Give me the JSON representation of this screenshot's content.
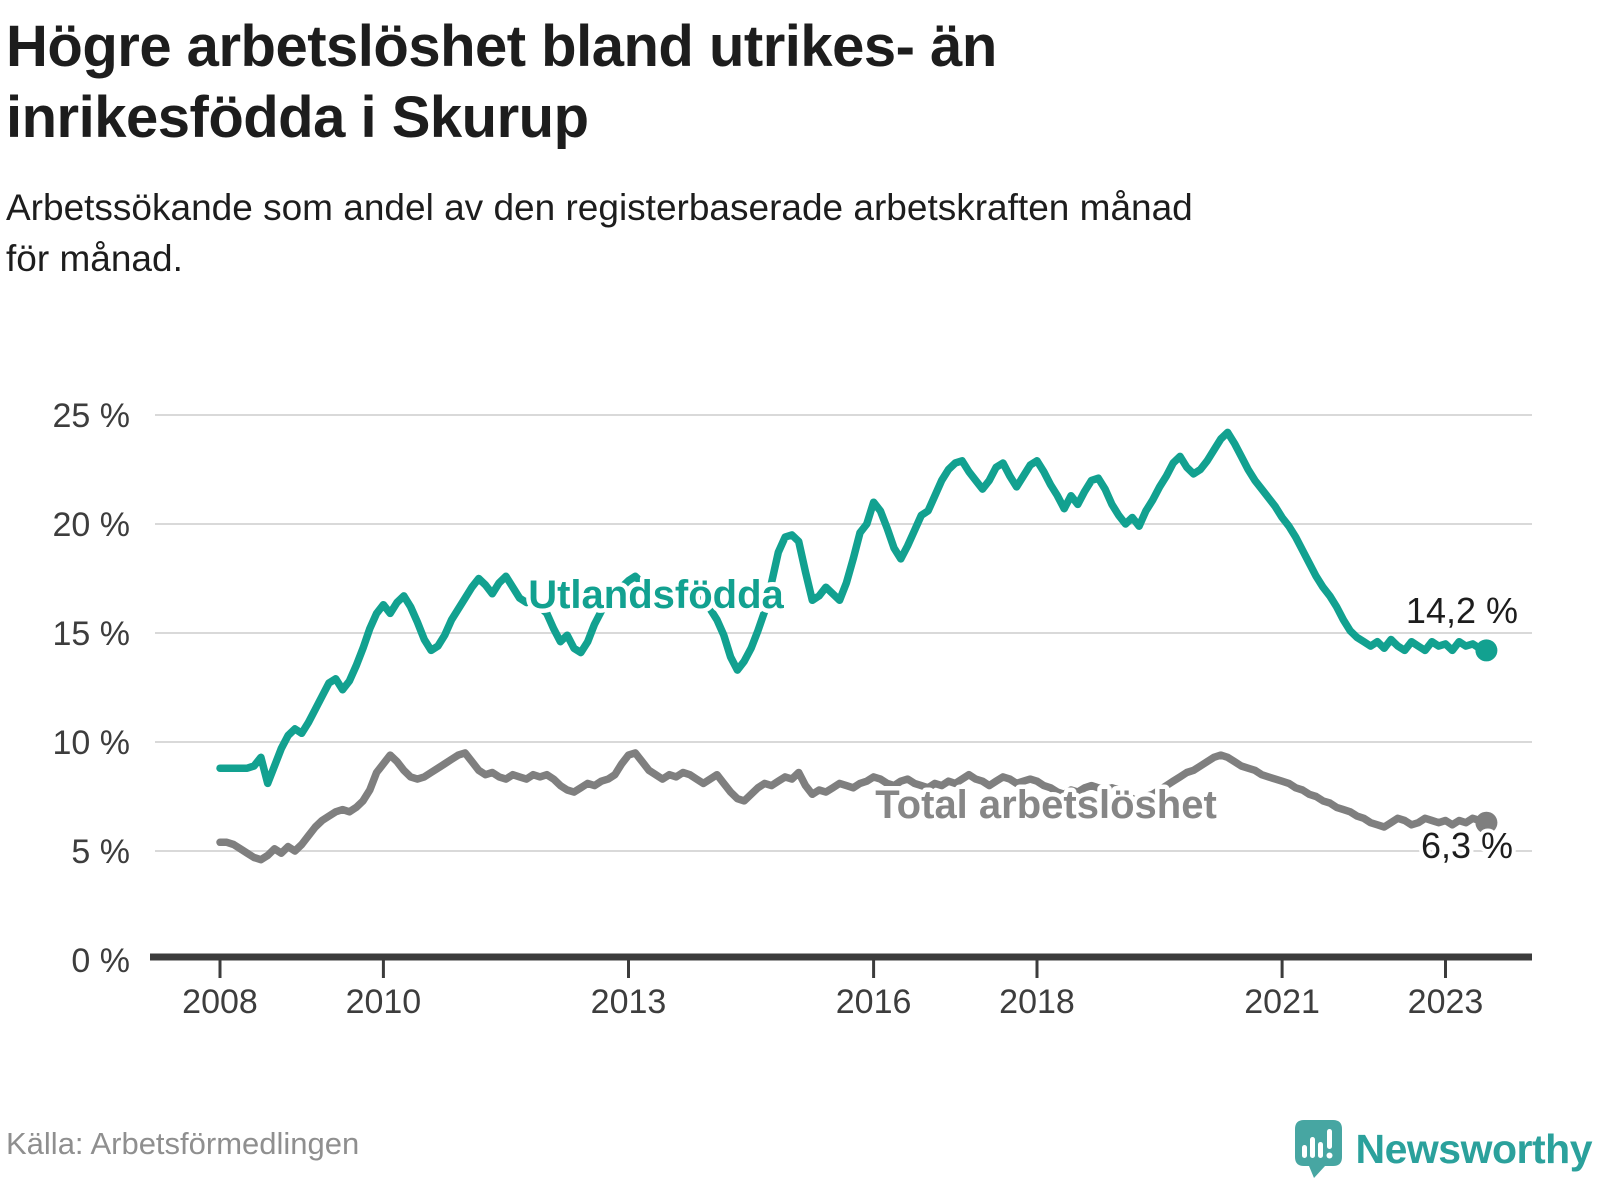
{
  "header": {
    "title_line1": "Högre arbetslöshet bland utrikes- än",
    "title_line2": "inrikesfödda i Skurup",
    "subtitle_line1": "Arbetssökande som andel av den registerbaserade arbetskraften månad",
    "subtitle_line2": "för månad."
  },
  "chart_data": {
    "type": "line",
    "title": "Högre arbetslöshet bland utrikes- än inrikesfödda i Skurup",
    "subtitle": "Arbetssökande som andel av den registerbaserade arbetskraften månad för månad.",
    "frequency": "monthly",
    "x_start": "2008-01",
    "x_end": "2023-07",
    "grid": "horizontal",
    "legend_position": "inline-labels",
    "ylim": [
      0,
      25
    ],
    "y_ticks": [
      {
        "value": 0,
        "label": "0 %"
      },
      {
        "value": 5,
        "label": "5 %"
      },
      {
        "value": 10,
        "label": "10 %"
      },
      {
        "value": 15,
        "label": "15 %"
      },
      {
        "value": 20,
        "label": "20 %"
      },
      {
        "value": 25,
        "label": "25 %"
      }
    ],
    "x_ticks": [
      {
        "year": 2008,
        "label": "2008"
      },
      {
        "year": 2010,
        "label": "2010"
      },
      {
        "year": 2013,
        "label": "2013"
      },
      {
        "year": 2016,
        "label": "2016"
      },
      {
        "year": 2018,
        "label": "2018"
      },
      {
        "year": 2021,
        "label": "2021"
      },
      {
        "year": 2023,
        "label": "2023"
      }
    ],
    "series": [
      {
        "name": "Utlandsfödda",
        "color": "#12A190",
        "end_value": 14.2,
        "end_label": "14,2 %",
        "values": [
          8.8,
          8.8,
          8.8,
          8.8,
          8.8,
          8.9,
          9.3,
          8.1,
          8.9,
          9.7,
          10.3,
          10.6,
          10.4,
          10.9,
          11.5,
          12.1,
          12.7,
          12.9,
          12.4,
          12.8,
          13.5,
          14.3,
          15.2,
          15.9,
          16.3,
          15.9,
          16.4,
          16.7,
          16.2,
          15.5,
          14.7,
          14.2,
          14.4,
          14.9,
          15.6,
          16.1,
          16.6,
          17.1,
          17.5,
          17.2,
          16.8,
          17.3,
          17.6,
          17.1,
          16.6,
          16.4,
          16.7,
          16.2,
          15.9,
          15.2,
          14.6,
          14.9,
          14.3,
          14.1,
          14.6,
          15.4,
          16.0,
          16.5,
          16.8,
          17.1,
          17.4,
          17.6,
          17.3,
          16.9,
          16.6,
          16.8,
          17.1,
          16.9,
          16.6,
          16.8,
          16.6,
          16.4,
          16.1,
          15.6,
          14.9,
          13.9,
          13.3,
          13.7,
          14.3,
          15.1,
          16.0,
          17.3,
          18.7,
          19.4,
          19.5,
          19.2,
          17.8,
          16.5,
          16.7,
          17.1,
          16.8,
          16.5,
          17.3,
          18.4,
          19.6,
          20.0,
          21.0,
          20.6,
          19.8,
          18.9,
          18.4,
          19.0,
          19.7,
          20.4,
          20.6,
          21.3,
          22.0,
          22.5,
          22.8,
          22.9,
          22.4,
          22.0,
          21.6,
          22.0,
          22.6,
          22.8,
          22.2,
          21.7,
          22.2,
          22.7,
          22.9,
          22.4,
          21.8,
          21.3,
          20.7,
          21.3,
          20.9,
          21.5,
          22.0,
          22.1,
          21.6,
          20.9,
          20.4,
          20.0,
          20.3,
          19.9,
          20.6,
          21.1,
          21.7,
          22.2,
          22.8,
          23.1,
          22.6,
          22.3,
          22.5,
          22.9,
          23.4,
          23.9,
          24.2,
          23.7,
          23.1,
          22.5,
          22.0,
          21.6,
          21.2,
          20.8,
          20.3,
          19.9,
          19.4,
          18.8,
          18.2,
          17.6,
          17.1,
          16.7,
          16.2,
          15.6,
          15.1,
          14.8,
          14.6,
          14.4,
          14.6,
          14.3,
          14.7,
          14.4,
          14.2,
          14.6,
          14.4,
          14.2,
          14.6,
          14.4,
          14.5,
          14.2,
          14.6,
          14.4,
          14.5,
          14.3,
          14.2
        ]
      },
      {
        "name": "Total arbetslöshet",
        "color": "#7F7F7F",
        "end_value": 6.3,
        "end_label": "6,3 %",
        "values": [
          5.4,
          5.4,
          5.3,
          5.1,
          4.9,
          4.7,
          4.6,
          4.8,
          5.1,
          4.9,
          5.2,
          5.0,
          5.3,
          5.7,
          6.1,
          6.4,
          6.6,
          6.8,
          6.9,
          6.8,
          7.0,
          7.3,
          7.8,
          8.6,
          9.0,
          9.4,
          9.1,
          8.7,
          8.4,
          8.3,
          8.4,
          8.6,
          8.8,
          9.0,
          9.2,
          9.4,
          9.5,
          9.1,
          8.7,
          8.5,
          8.6,
          8.4,
          8.3,
          8.5,
          8.4,
          8.3,
          8.5,
          8.4,
          8.5,
          8.3,
          8.0,
          7.8,
          7.7,
          7.9,
          8.1,
          8.0,
          8.2,
          8.3,
          8.5,
          9.0,
          9.4,
          9.5,
          9.1,
          8.7,
          8.5,
          8.3,
          8.5,
          8.4,
          8.6,
          8.5,
          8.3,
          8.1,
          8.3,
          8.5,
          8.1,
          7.7,
          7.4,
          7.3,
          7.6,
          7.9,
          8.1,
          8.0,
          8.2,
          8.4,
          8.3,
          8.6,
          8.0,
          7.6,
          7.8,
          7.7,
          7.9,
          8.1,
          8.0,
          7.9,
          8.1,
          8.2,
          8.4,
          8.3,
          8.1,
          8.0,
          8.2,
          8.3,
          8.1,
          8.0,
          7.9,
          8.1,
          8.0,
          8.2,
          8.1,
          8.3,
          8.5,
          8.3,
          8.2,
          8.0,
          8.2,
          8.4,
          8.3,
          8.1,
          8.2,
          8.3,
          8.2,
          8.0,
          7.9,
          7.7,
          7.6,
          7.8,
          7.7,
          7.9,
          8.0,
          7.9,
          7.8,
          7.9,
          7.8,
          7.6,
          7.4,
          7.3,
          7.5,
          7.6,
          7.8,
          8.0,
          8.2,
          8.4,
          8.6,
          8.7,
          8.9,
          9.1,
          9.3,
          9.4,
          9.3,
          9.1,
          8.9,
          8.8,
          8.7,
          8.5,
          8.4,
          8.3,
          8.2,
          8.1,
          7.9,
          7.8,
          7.6,
          7.5,
          7.3,
          7.2,
          7.0,
          6.9,
          6.8,
          6.6,
          6.5,
          6.3,
          6.2,
          6.1,
          6.3,
          6.5,
          6.4,
          6.2,
          6.3,
          6.5,
          6.4,
          6.3,
          6.4,
          6.2,
          6.4,
          6.3,
          6.5,
          6.4,
          6.3
        ]
      }
    ]
  },
  "colors": {
    "series_utlandsfodda": "#12A190",
    "series_total": "#7F7F7F",
    "gridline": "#d9d9d9",
    "axis": "#3c3c3c",
    "logo_icon": "#47A6A2",
    "logo_wordmark": "#2BA19C"
  },
  "footer": {
    "source": "Källa: Arbetsförmedlingen",
    "brand": "Newsworthy"
  }
}
